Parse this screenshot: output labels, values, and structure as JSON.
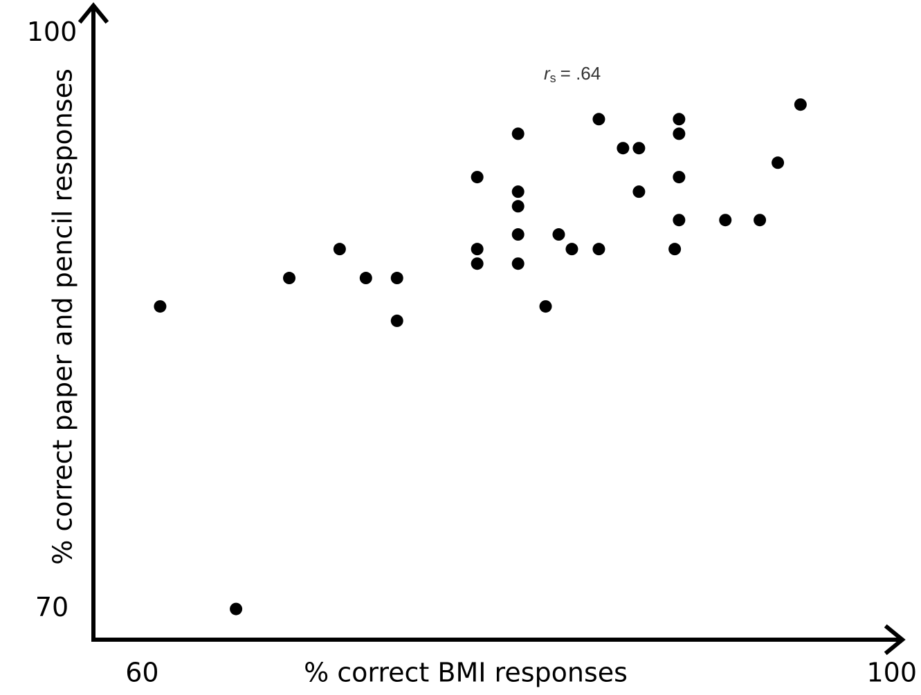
{
  "chart_data": {
    "type": "scatter",
    "x_label": "% correct BMI responses",
    "y_label": "% correct paper and pencil responses",
    "annotation": {
      "symbol": "r",
      "subscript": "s",
      "text": "= .64"
    },
    "color": "#000000",
    "xlim": [
      57.4,
      100.6
    ],
    "ylim": [
      68.4,
      101.2
    ],
    "xticks": [
      60,
      100
    ],
    "yticks": [
      70,
      100
    ],
    "grid": false,
    "x": [
      60.96,
      65.01,
      67.85,
      70.54,
      71.94,
      73.6,
      73.6,
      77.88,
      77.88,
      77.88,
      80.06,
      80.06,
      80.06,
      80.06,
      80.06,
      81.53,
      82.23,
      82.93,
      84.37,
      84.37,
      85.66,
      86.51,
      86.51,
      88.42,
      88.65,
      88.65,
      88.65,
      88.65,
      91.12,
      92.96,
      93.92,
      95.13
    ],
    "values": [
      85.77,
      70.0,
      87.25,
      88.76,
      87.25,
      87.25,
      85.02,
      92.51,
      88.76,
      88.0,
      94.77,
      91.75,
      90.99,
      89.52,
      88.0,
      85.77,
      89.52,
      88.76,
      95.53,
      88.76,
      94.02,
      94.02,
      91.75,
      88.76,
      95.53,
      94.77,
      92.51,
      90.27,
      90.27,
      90.27,
      93.26,
      96.29
    ]
  }
}
